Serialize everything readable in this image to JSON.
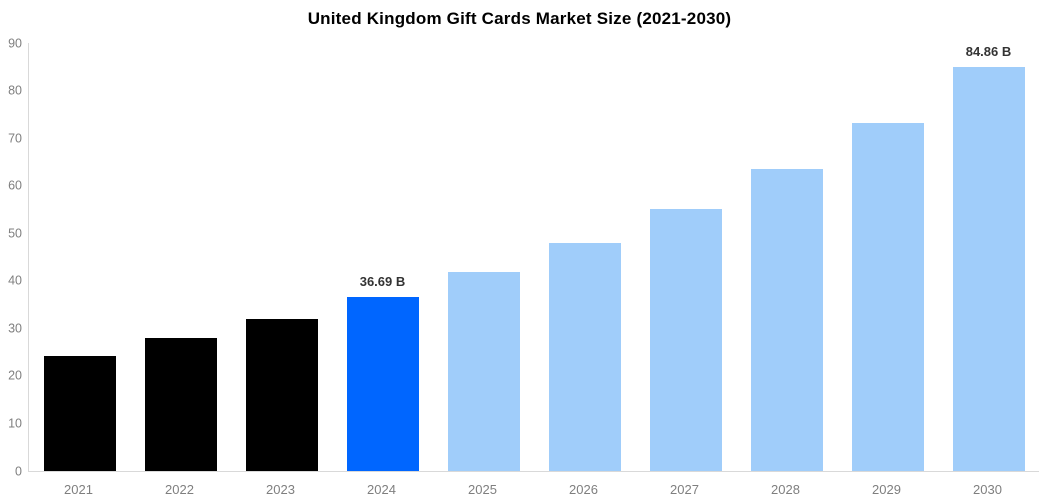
{
  "title": "United Kingdom Gift Cards Market Size (2021-2030)",
  "colors": {
    "background": "#FFFFFF",
    "historical_bar": "#000000",
    "current_year_bar": "#0066FF",
    "forecast_bar": "#A0CDFA",
    "axis_line": "#D9D9D9",
    "tick_label": "#7F7F7F",
    "value_label": "#333333",
    "title_text": "#000000"
  },
  "chart_data": {
    "type": "bar",
    "title": "United Kingdom Gift Cards Market Size (2021-2030)",
    "xlabel": "",
    "ylabel": "",
    "unit": "B",
    "categories": [
      "2021",
      "2022",
      "2023",
      "2024",
      "2025",
      "2026",
      "2027",
      "2028",
      "2029",
      "2030"
    ],
    "values": [
      24.1,
      27.9,
      31.9,
      36.69,
      41.9,
      47.9,
      55.0,
      63.5,
      73.1,
      84.86
    ],
    "value_labels": [
      "",
      "",
      "",
      "36.69 B",
      "",
      "",
      "",
      "",
      "",
      "84.86 B"
    ],
    "bar_colors": [
      "#000000",
      "#000000",
      "#000000",
      "#0066FF",
      "#A0CDFA",
      "#A0CDFA",
      "#A0CDFA",
      "#A0CDFA",
      "#A0CDFA",
      "#A0CDFA"
    ],
    "ylim": [
      0,
      90
    ],
    "yticks": [
      0,
      10,
      20,
      30,
      40,
      50,
      60,
      70,
      80,
      90
    ],
    "grid": false,
    "legend_position": "none"
  }
}
